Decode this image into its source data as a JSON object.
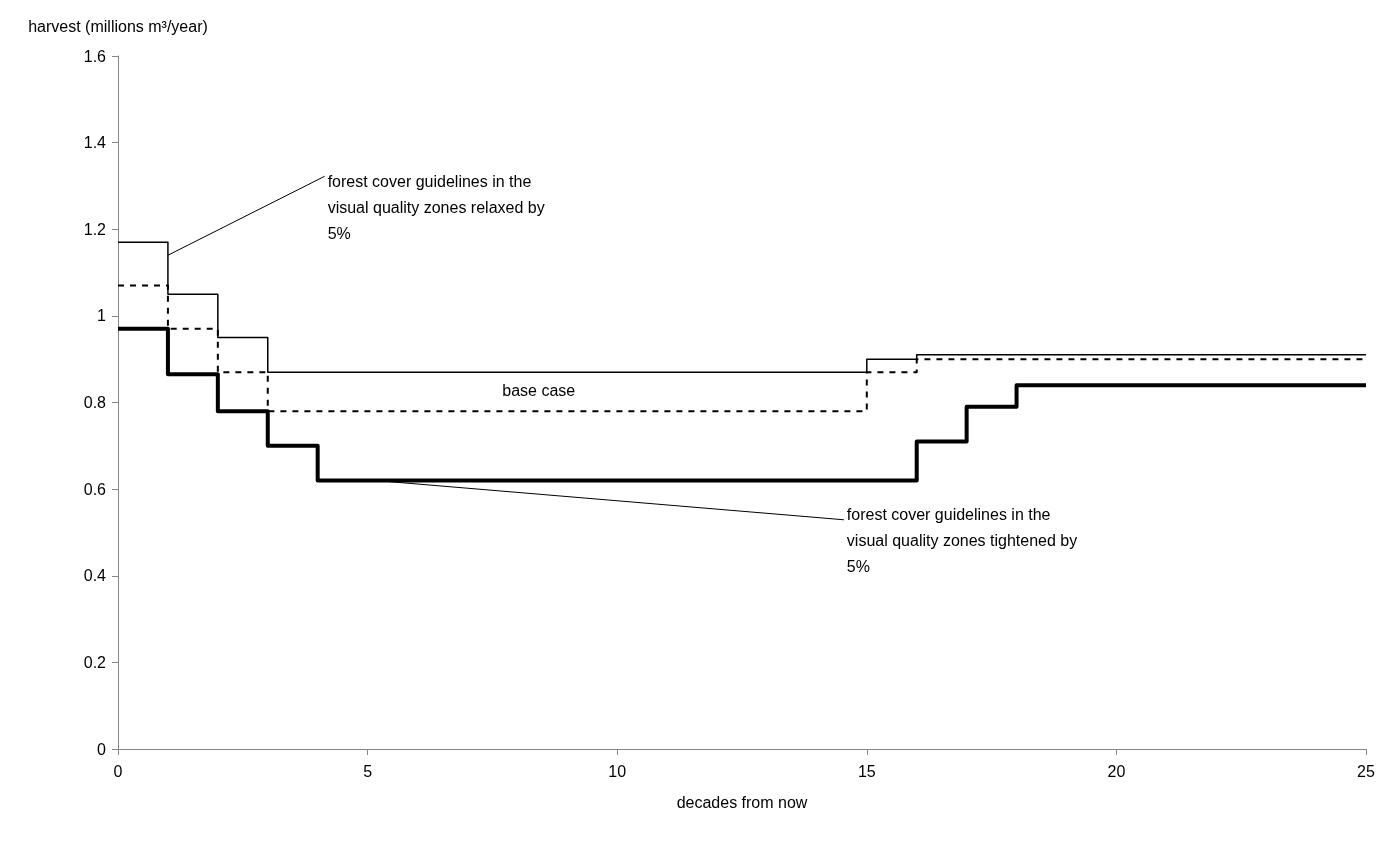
{
  "chart_data": {
    "type": "step",
    "xlabel": "decades from now",
    "ylabel": "harvest (millions m³/year)",
    "xlim": [
      0,
      25
    ],
    "xticks": [
      0,
      5,
      10,
      15,
      20,
      25
    ],
    "ylim": [
      0,
      1.6
    ],
    "yticks": [
      0,
      0.2,
      0.4,
      0.6,
      0.8,
      1,
      1.2,
      1.4,
      1.6
    ],
    "grid": false,
    "legend": false,
    "marker": "none",
    "series": [
      {
        "name": "forest cover guidelines in the visual quality zones relaxed by 5%",
        "color": "#000000",
        "line_style": "solid",
        "x": [
          0,
          1,
          2,
          3,
          15,
          16,
          25
        ],
        "values": [
          1.17,
          1.05,
          0.95,
          0.87,
          0.9,
          0.91,
          0.91
        ]
      },
      {
        "name": "base case",
        "color": "#000000",
        "line_style": "dashed",
        "x": [
          0,
          1,
          2,
          3,
          15,
          16,
          25
        ],
        "values": [
          1.07,
          0.97,
          0.87,
          0.78,
          0.87,
          0.9,
          0.9
        ]
      },
      {
        "name": "forest cover guidelines in the visual quality zones tightened by 5%",
        "color": "#000000",
        "line_style": "solid",
        "x": [
          0,
          1,
          2,
          3,
          4,
          16,
          17,
          18,
          25
        ],
        "values": [
          0.97,
          0.865,
          0.78,
          0.7,
          0.62,
          0.71,
          0.79,
          0.84,
          0.84
        ]
      }
    ]
  }
}
